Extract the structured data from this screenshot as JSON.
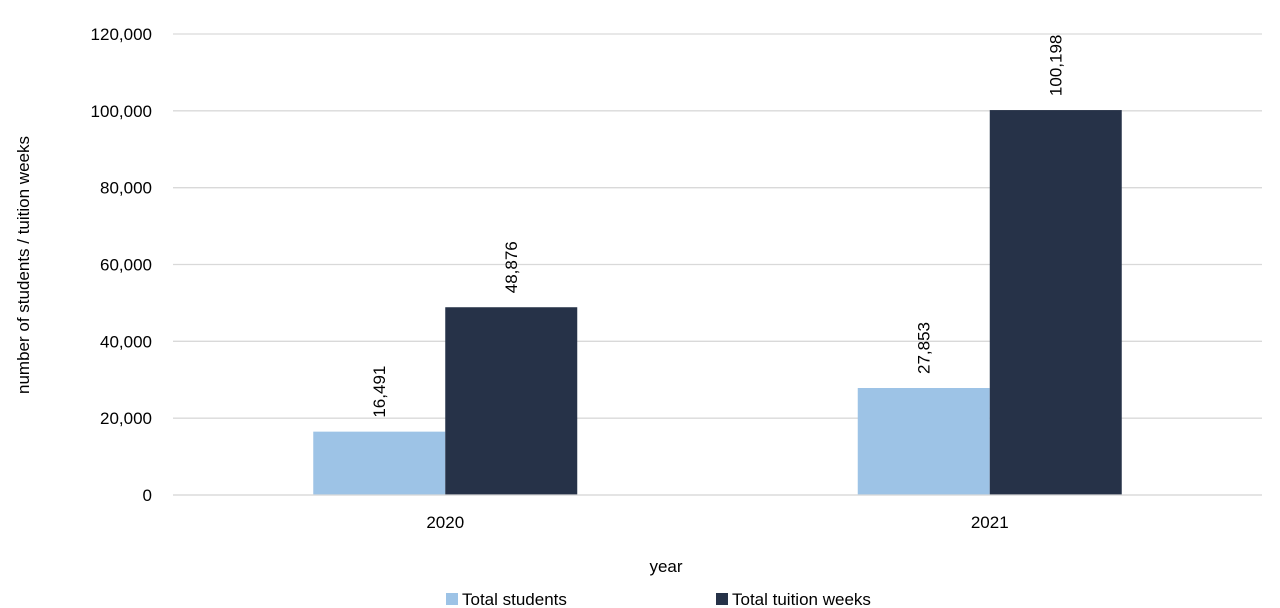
{
  "chart_data": {
    "type": "bar",
    "categories": [
      "2020",
      "2021"
    ],
    "series": [
      {
        "name": "Total students",
        "values": [
          16491,
          27853
        ],
        "labels": [
          "16,491",
          "27,853"
        ],
        "color": "#9dc3e6"
      },
      {
        "name": "Total tuition weeks",
        "values": [
          48876,
          100198
        ],
        "labels": [
          "48,876",
          "100,198"
        ],
        "color": "#263248"
      }
    ],
    "xlabel": "year",
    "ylabel": "number of students / tuition weeks",
    "ylim": [
      0,
      120000
    ],
    "yticks": [
      0,
      20000,
      40000,
      60000,
      80000,
      100000,
      120000
    ],
    "ytick_labels": [
      "0",
      "20,000",
      "40,000",
      "60,000",
      "80,000",
      "100,000",
      "120,000"
    ],
    "grid": true,
    "legend_position": "bottom"
  }
}
